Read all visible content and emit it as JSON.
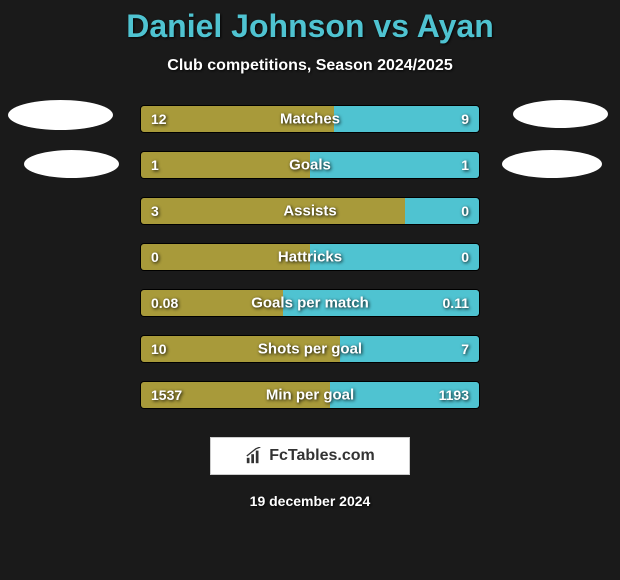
{
  "title": "Daniel Johnson vs Ayan",
  "subtitle": "Club competitions, Season 2024/2025",
  "date": "19 december 2024",
  "logo_text": "FcTables.com",
  "colors": {
    "background": "#1a1a1a",
    "title": "#4fc3d1",
    "player1_bar": "#a89a3a",
    "player2_bar": "#4fc3d1",
    "ellipse": "#ffffff",
    "text": "#ffffff"
  },
  "stats": [
    {
      "label": "Matches",
      "left_value": "12",
      "right_value": "9",
      "left_pct": 57,
      "right_pct": 43
    },
    {
      "label": "Goals",
      "left_value": "1",
      "right_value": "1",
      "left_pct": 50,
      "right_pct": 50
    },
    {
      "label": "Assists",
      "left_value": "3",
      "right_value": "0",
      "left_pct": 78,
      "right_pct": 22
    },
    {
      "label": "Hattricks",
      "left_value": "0",
      "right_value": "0",
      "left_pct": 50,
      "right_pct": 50
    },
    {
      "label": "Goals per match",
      "left_value": "0.08",
      "right_value": "0.11",
      "left_pct": 42,
      "right_pct": 58
    },
    {
      "label": "Shots per goal",
      "left_value": "10",
      "right_value": "7",
      "left_pct": 59,
      "right_pct": 41
    },
    {
      "label": "Min per goal",
      "left_value": "1537",
      "right_value": "1193",
      "left_pct": 56,
      "right_pct": 44
    }
  ]
}
